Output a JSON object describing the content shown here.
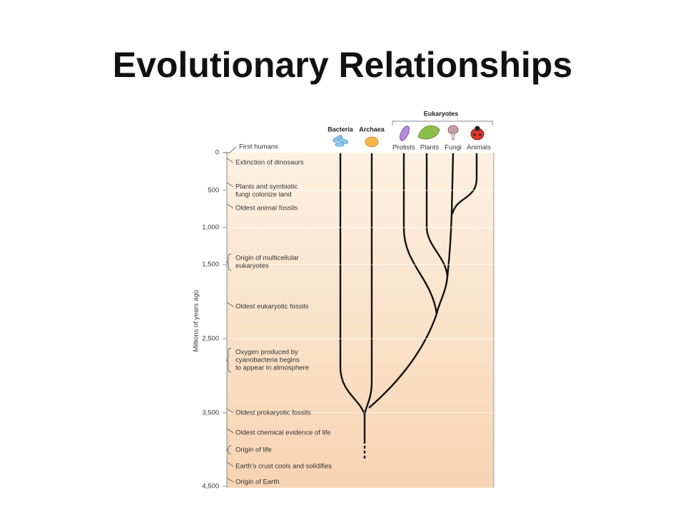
{
  "title": "Evolutionary Relationships",
  "timeline": {
    "axis_label": "Millions of years ago",
    "ticks": [
      "0",
      "500",
      "1,000",
      "1,500",
      "2,500",
      "3,500",
      "4,500"
    ],
    "events": [
      [
        "First humans"
      ],
      [
        "Extinction of dinosaurs"
      ],
      [
        "Plants and symbiotic",
        "fungi colonize land"
      ],
      [
        "Oldest animal fossils"
      ],
      [
        "Origin of multicellular",
        "eukaryotes"
      ],
      [
        "Oldest eukaryotic fossils"
      ],
      [
        "Oxygen produced by",
        "cyanobacteria begins",
        "to appear in atmosphere"
      ],
      [
        "Oldest prokaryotic fossils"
      ],
      [
        "Oldest chemical evidence of life"
      ],
      [
        "Origin of life"
      ],
      [
        "Earth’s crust cools and solidifies"
      ],
      [
        "Origin of Earth"
      ]
    ]
  },
  "tree": {
    "domains": [
      "Bacteria",
      "Archaea"
    ],
    "group": "Eukaryotes",
    "kingdoms": [
      "Protists",
      "Plants",
      "Fungi",
      "Animals"
    ]
  }
}
